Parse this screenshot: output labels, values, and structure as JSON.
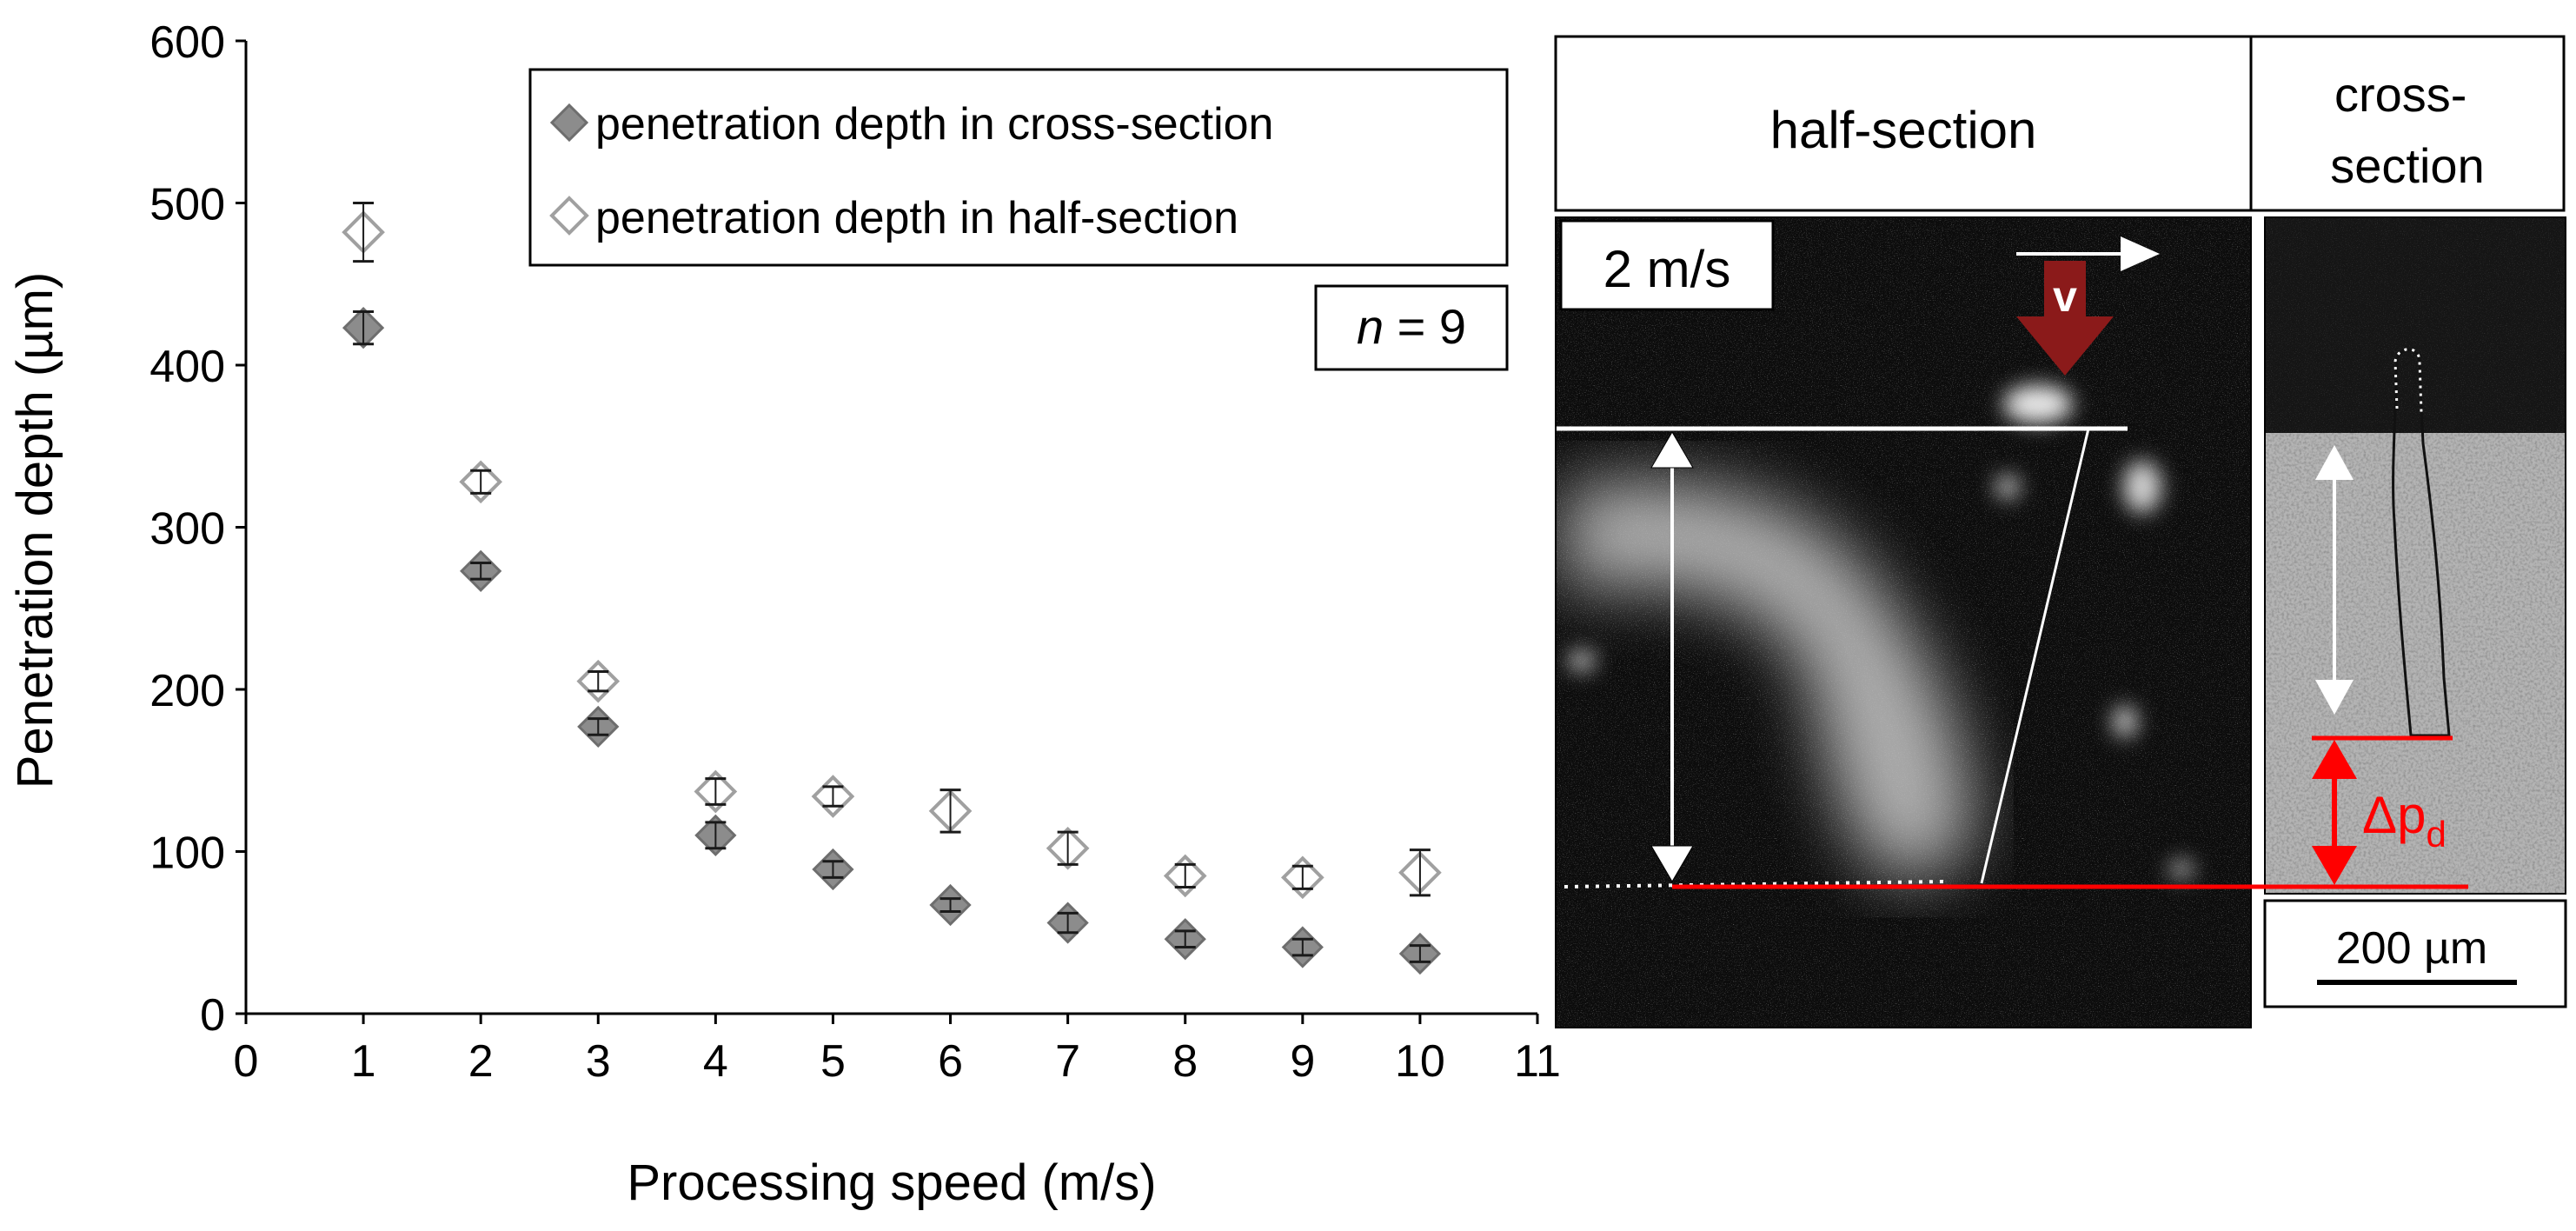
{
  "chart_data": {
    "type": "scatter",
    "title": "",
    "xlabel": "Processing speed (m/s)",
    "ylabel": "Penetration depth (µm)",
    "xlim": [
      0,
      11
    ],
    "ylim": [
      0,
      600
    ],
    "xticks": [
      0,
      1,
      2,
      3,
      4,
      5,
      6,
      7,
      8,
      9,
      10,
      11
    ],
    "yticks": [
      0,
      100,
      200,
      300,
      400,
      500,
      600
    ],
    "grid": false,
    "legend_position": "top-right",
    "annotation": {
      "italic": "n",
      "rest": " = 9"
    },
    "series": [
      {
        "name": "penetration depth in cross-section",
        "marker": "diamond-filled",
        "color": "#8c8c8c",
        "x": [
          1,
          2,
          3,
          4,
          5,
          6,
          7,
          8,
          9,
          10
        ],
        "y": [
          423,
          273,
          177,
          110,
          89,
          67,
          56,
          46,
          41,
          37
        ],
        "err": [
          10,
          5,
          5,
          8,
          5,
          4,
          6,
          5,
          5,
          5
        ]
      },
      {
        "name": "penetration depth in half-section",
        "marker": "diamond-open",
        "color": "#a0a0a0",
        "x": [
          1,
          2,
          3,
          4,
          5,
          6,
          7,
          8,
          9,
          10
        ],
        "y": [
          482,
          328,
          205,
          137,
          134,
          125,
          102,
          85,
          84,
          87
        ],
        "err": [
          18,
          7,
          6,
          8,
          6,
          13,
          10,
          7,
          7,
          14
        ]
      }
    ]
  },
  "micrograph": {
    "half_label": "half-section",
    "cross_label": "cross-section",
    "speed_label": "2 m/s",
    "velocity_label": "v",
    "delta_symbol": "Δp",
    "delta_subscript": "d",
    "scale_label": "200 µm",
    "arrow_color": "#8b1a1a",
    "line_color": "#ff0000"
  }
}
